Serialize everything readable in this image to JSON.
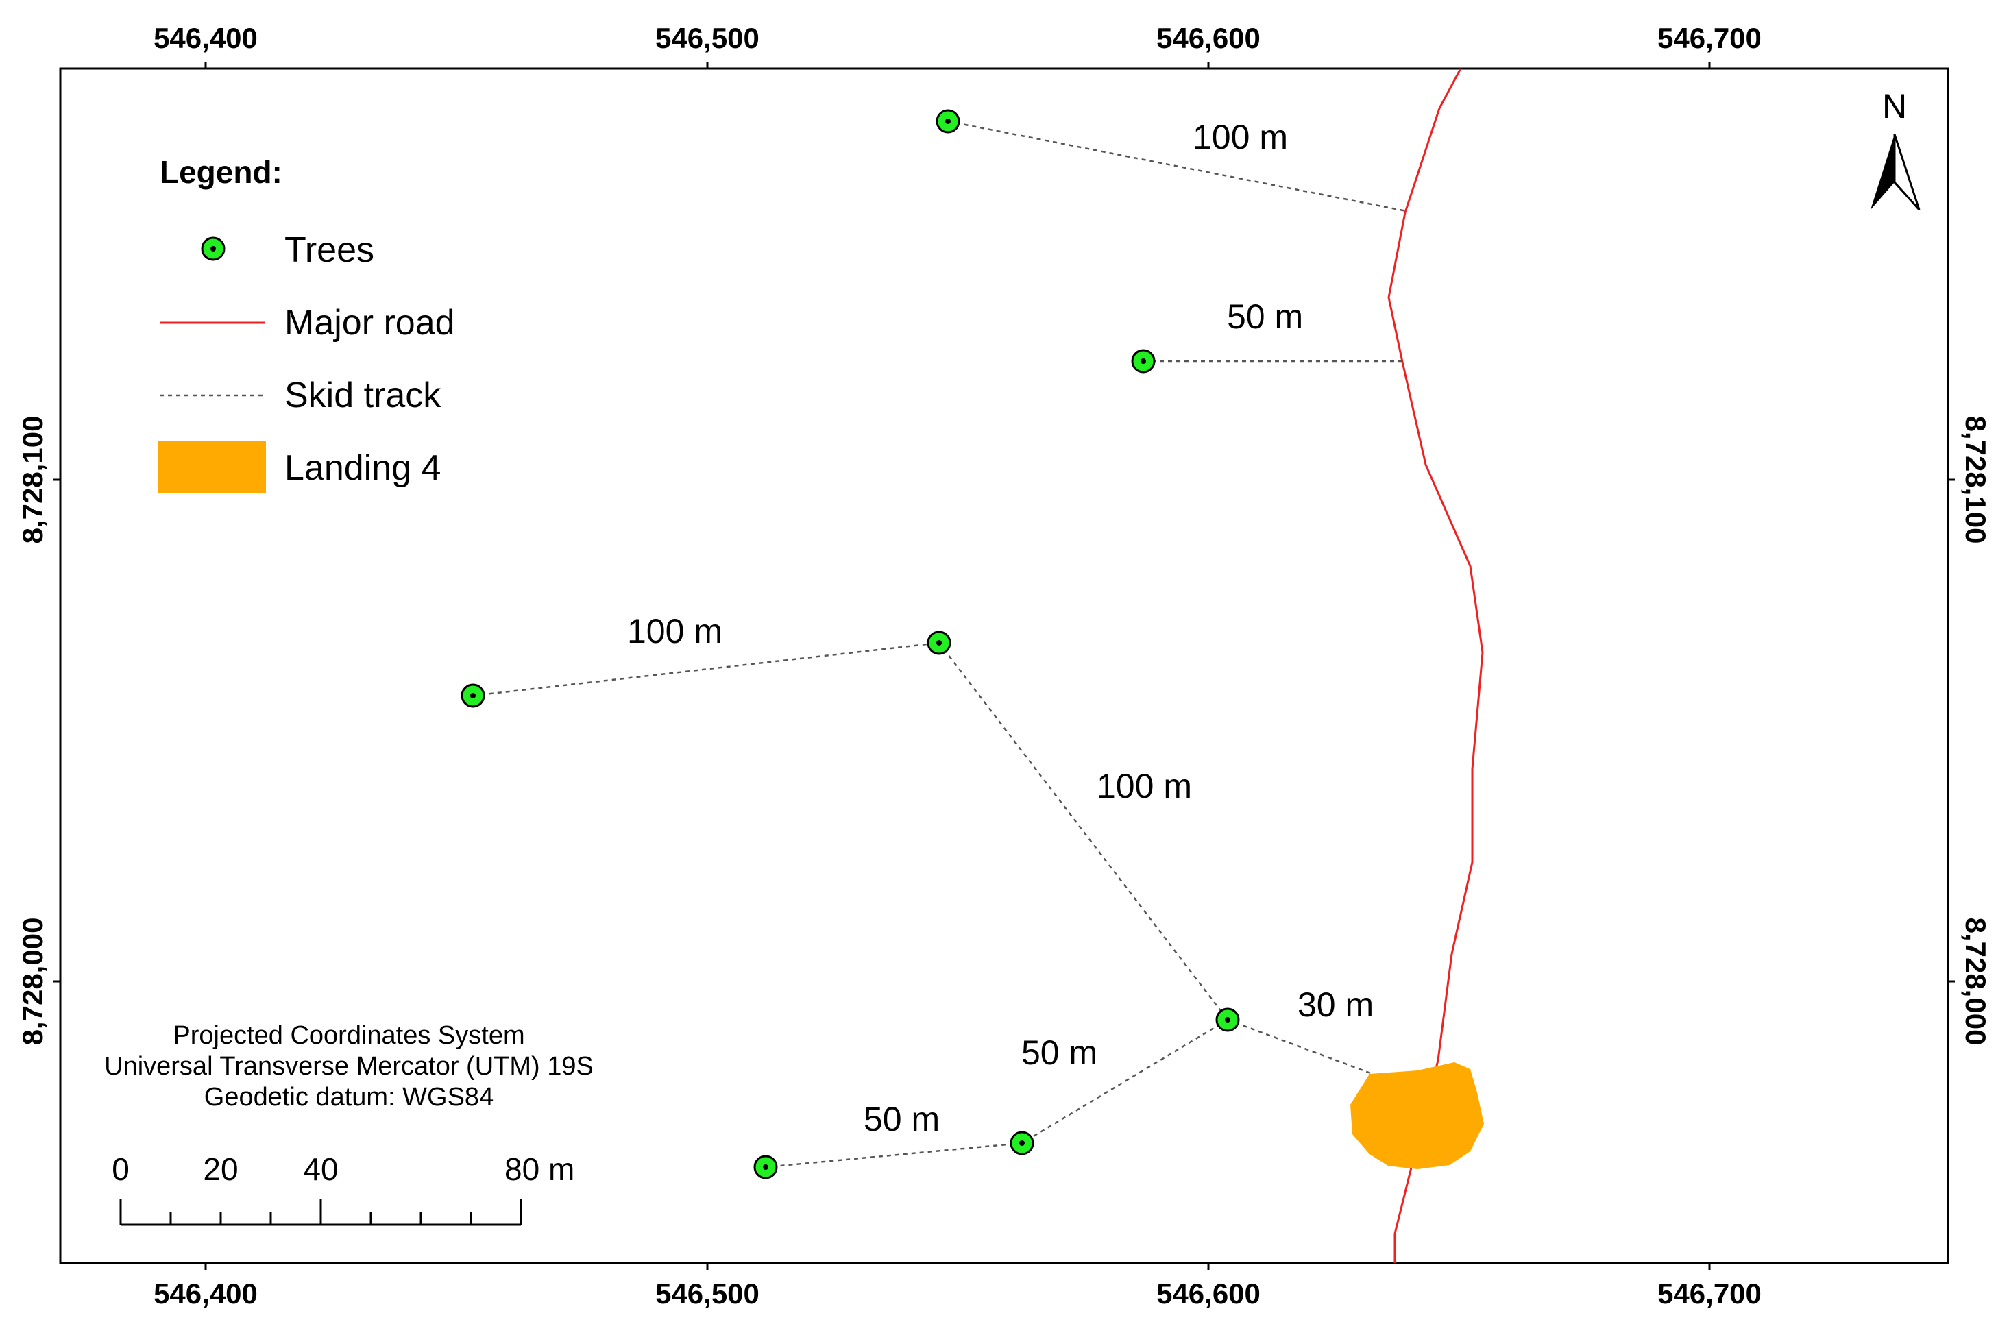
{
  "map": {
    "top_x_ticks": [
      "546,400",
      "546,500",
      "546,600",
      "546,700"
    ],
    "bottom_x_ticks": [
      "546,400",
      "546,500",
      "546,600",
      "546,700"
    ],
    "left_y_ticks": [
      "8,728,100",
      "8,728,000"
    ],
    "right_y_ticks": [
      "8,728,100",
      "8,728,000"
    ],
    "north_label": "N",
    "track_labels": [
      "100 m",
      "50 m",
      "100 m",
      "100 m",
      "30 m",
      "50 m",
      "50 m"
    ],
    "colors": {
      "tree_fill": "#22ee22",
      "road": "#ee2222",
      "skid_track": "#555555",
      "landing": "#ffaa00"
    }
  },
  "legend": {
    "title": "Legend:",
    "items": [
      {
        "label": "Trees",
        "symbol": "tree"
      },
      {
        "label": "Major road",
        "symbol": "road"
      },
      {
        "label": "Skid track",
        "symbol": "skid-track"
      },
      {
        "label": "Landing 4",
        "symbol": "landing"
      }
    ]
  },
  "projection": {
    "line1": "Projected Coordinates System",
    "line2": "Universal Transverse Mercator (UTM) 19S",
    "line3": "Geodetic datum: WGS84"
  },
  "scale_bar": {
    "labels": [
      "0",
      "20",
      "40",
      "80 m"
    ]
  }
}
